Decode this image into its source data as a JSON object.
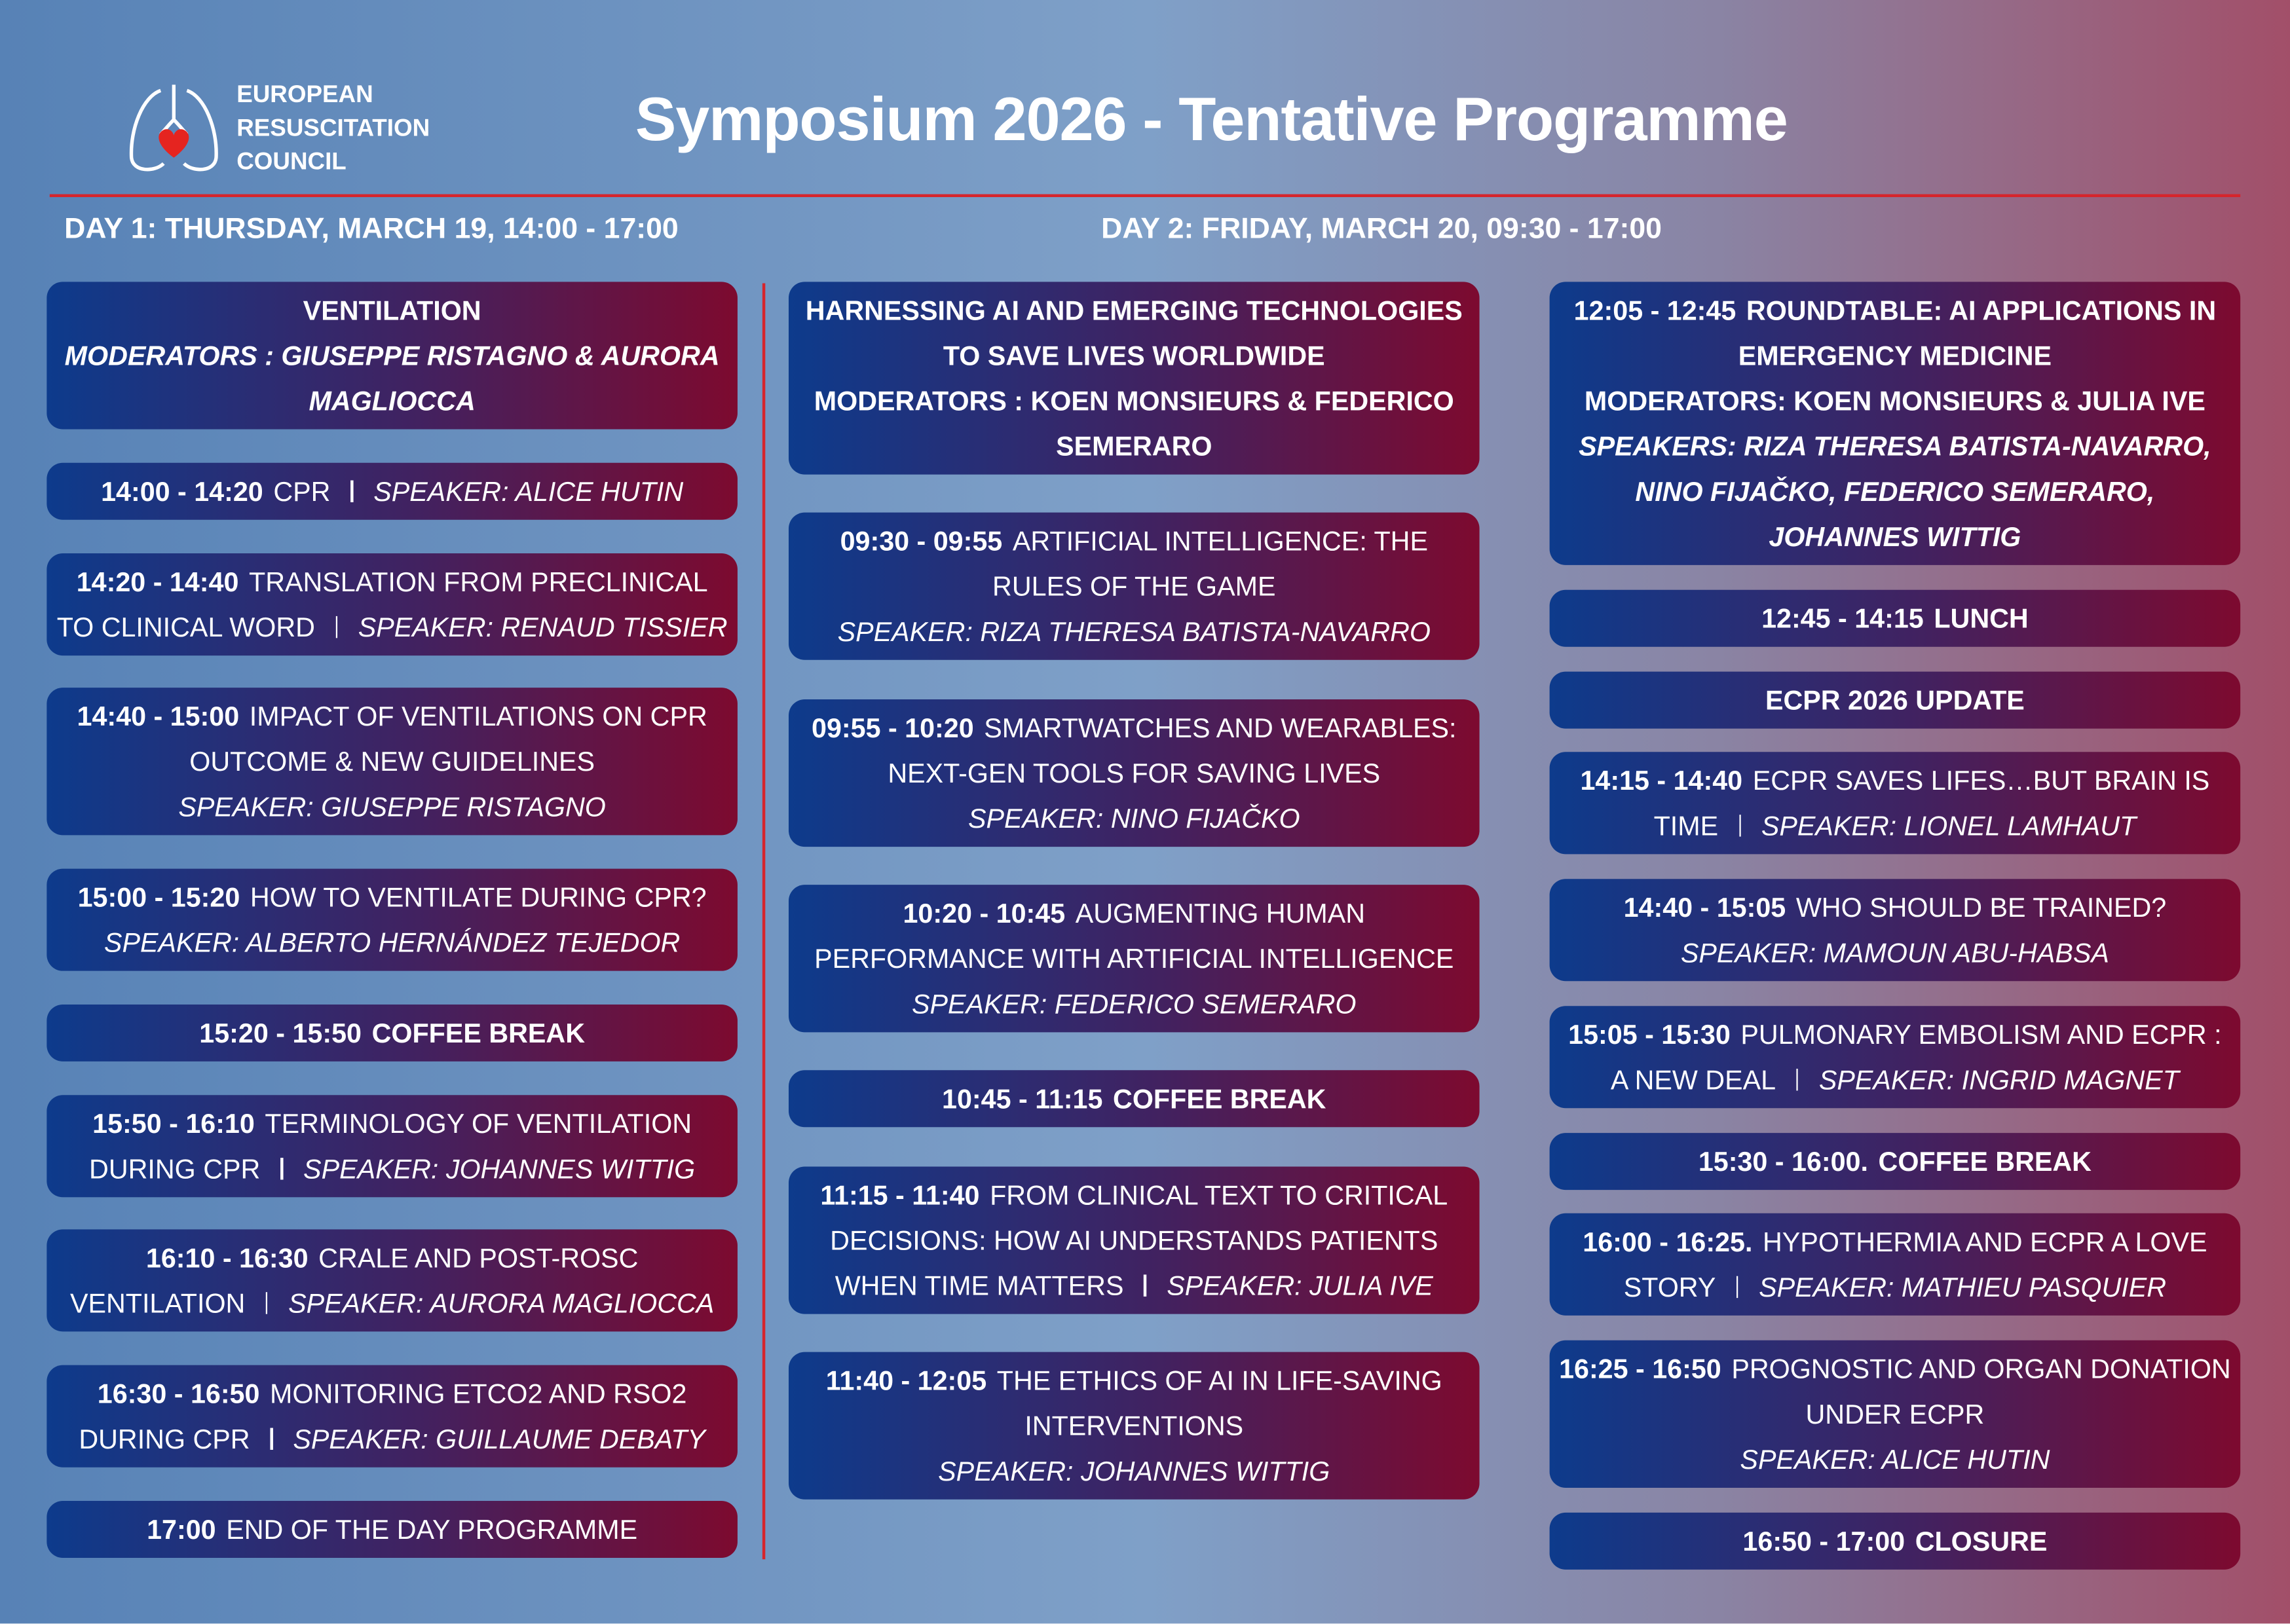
{
  "header": {
    "org_name": [
      "EUROPEAN",
      "RESUSCITATION",
      "COUNCIL"
    ],
    "title": "Symposium 2026  - Tentative Programme"
  },
  "day1": {
    "heading": "DAY 1: THURSDAY, MARCH 19, 14:00 - 17:00",
    "sessions": [
      {
        "kind": "header",
        "title": "VENTILATION",
        "moderators": "MODERATORS : GIUSEPPE RISTAGNO & AURORA MAGLIOCCA",
        "moderators_italic": true
      },
      {
        "kind": "talk",
        "time": "14:00 - 14:20",
        "title": "CPR",
        "speaker": "SPEAKER: ALICE HUTIN",
        "inline": true
      },
      {
        "kind": "talk",
        "time": "14:20 - 14:40",
        "title": "TRANSLATION FROM PRECLINICAL TO CLINICAL WORD",
        "speaker": "SPEAKER: RENAUD TISSIER",
        "inline": true
      },
      {
        "kind": "talk",
        "time": "14:40 - 15:00",
        "title": "IMPACT OF VENTILATIONS ON CPR OUTCOME & NEW GUIDELINES",
        "speaker": "SPEAKER: GIUSEPPE RISTAGNO",
        "inline": false
      },
      {
        "kind": "talk",
        "time": "15:00 - 15:20",
        "title": "HOW TO VENTILATE DURING CPR?",
        "speaker": "SPEAKER: ALBERTO HERNÁNDEZ TEJEDOR",
        "inline": false
      },
      {
        "kind": "break",
        "time": "15:20 - 15:50",
        "title": "COFFEE BREAK"
      },
      {
        "kind": "talk",
        "time": "15:50 - 16:10",
        "title": "TERMINOLOGY OF VENTILATION DURING CPR",
        "speaker": "SPEAKER: JOHANNES WITTIG",
        "inline": true
      },
      {
        "kind": "talk",
        "time": "16:10 - 16:30",
        "title": "CRALE AND POST-ROSC VENTILATION",
        "speaker": "SPEAKER: AURORA MAGLIOCCA",
        "inline": true
      },
      {
        "kind": "talk",
        "time": "16:30 - 16:50",
        "title": "MONITORING ETCO2 AND RSO2 DURING CPR",
        "speaker": "SPEAKER: GUILLAUME DEBATY",
        "inline": true
      },
      {
        "kind": "talk",
        "time": "17:00",
        "title": "END OF THE DAY PROGRAMME"
      }
    ]
  },
  "day2": {
    "heading": "DAY 2: FRIDAY, MARCH 20, 09:30 - 17:00",
    "columns": [
      [
        {
          "kind": "header",
          "title": "HARNESSING AI AND EMERGING TECHNOLOGIES TO SAVE LIVES WORLDWIDE",
          "moderators": "MODERATORS : KOEN MONSIEURS & FEDERICO SEMERARO",
          "moderators_italic": false
        },
        {
          "kind": "talk",
          "time": "09:30 - 09:55",
          "title": "ARTIFICIAL INTELLIGENCE: THE RULES OF THE GAME",
          "speaker": "SPEAKER: RIZA THERESA BATISTA-NAVARRO",
          "inline": false
        },
        {
          "kind": "talk",
          "time": "09:55 - 10:20",
          "title": "SMARTWATCHES AND WEARABLES: NEXT-GEN TOOLS FOR SAVING LIVES",
          "speaker": "SPEAKER: NINO FIJAČKO",
          "inline": false
        },
        {
          "kind": "talk",
          "time": "10:20 - 10:45",
          "title": "AUGMENTING HUMAN PERFORMANCE WITH ARTIFICIAL INTELLIGENCE",
          "speaker": "SPEAKER: FEDERICO SEMERARO",
          "inline": false
        },
        {
          "kind": "break",
          "time": "10:45 - 11:15",
          "title": "COFFEE BREAK"
        },
        {
          "kind": "talk",
          "time": "11:15 - 11:40",
          "title": "FROM CLINICAL TEXT TO CRITICAL DECISIONS: HOW AI UNDERSTANDS PATIENTS WHEN TIME MATTERS",
          "speaker": "SPEAKER: JULIA IVE",
          "inline": true
        },
        {
          "kind": "talk",
          "time": "11:40 - 12:05",
          "title": "THE ETHICS OF AI IN LIFE-SAVING INTERVENTIONS",
          "speaker": "SPEAKER: JOHANNES WITTIG",
          "inline": false
        }
      ],
      [
        {
          "kind": "header",
          "time": "12:05 - 12:45",
          "title": "ROUNDTABLE: AI APPLICATIONS IN EMERGENCY MEDICINE",
          "moderators": "MODERATORS: KOEN MONSIEURS & JULIA IVE",
          "moderators_italic": false,
          "speakers": "SPEAKERS: RIZA THERESA BATISTA-NAVARRO, NINO FIJAČKO, FEDERICO SEMERARO, JOHANNES WITTIG"
        },
        {
          "kind": "break",
          "time": "12:45 - 14:15",
          "title": "LUNCH"
        },
        {
          "kind": "header",
          "title": "ECPR 2026 UPDATE"
        },
        {
          "kind": "talk",
          "time": "14:15 - 14:40",
          "title": "ECPR SAVES LIFES…BUT BRAIN IS TIME",
          "speaker": "SPEAKER: LIONEL LAMHAUT",
          "inline": true
        },
        {
          "kind": "talk",
          "time": "14:40 - 15:05",
          "title": "WHO SHOULD BE TRAINED?",
          "speaker": "SPEAKER: MAMOUN ABU-HABSA",
          "inline": false
        },
        {
          "kind": "talk",
          "time": "15:05 - 15:30",
          "title": "PULMONARY EMBOLISM AND ECPR : A NEW DEAL",
          "speaker": "SPEAKER: INGRID MAGNET",
          "inline": true
        },
        {
          "kind": "break",
          "time": "15:30 - 16:00.",
          "title": "COFFEE BREAK"
        },
        {
          "kind": "talk",
          "time": "16:00 - 16:25.",
          "title": "HYPOTHERMIA AND ECPR A LOVE STORY",
          "speaker": "SPEAKER: MATHIEU PASQUIER",
          "inline": true
        },
        {
          "kind": "talk",
          "time": "16:25 - 16:50",
          "title": "PROGNOSTIC AND ORGAN DONATION UNDER ECPR",
          "speaker": "SPEAKER: ALICE HUTIN",
          "inline": false
        },
        {
          "kind": "break",
          "time": "16:50 - 17:00",
          "title": "CLOSURE"
        }
      ]
    ]
  }
}
